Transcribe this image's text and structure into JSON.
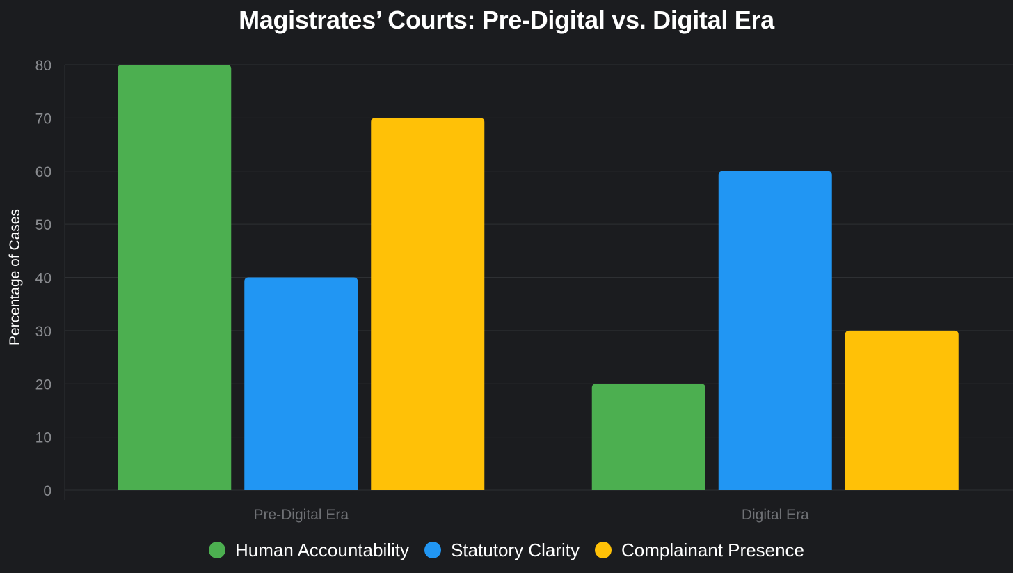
{
  "chart_data": {
    "type": "bar",
    "title": "Magistrates’ Courts: Pre-Digital vs. Digital Era",
    "xlabel": "",
    "ylabel": "Percentage of Cases",
    "categories": [
      "Pre-Digital Era",
      "Digital Era"
    ],
    "series": [
      {
        "name": "Human Accountability",
        "color": "#4caf50",
        "values": [
          80,
          20
        ]
      },
      {
        "name": "Statutory Clarity",
        "color": "#2196f3",
        "values": [
          40,
          60
        ]
      },
      {
        "name": "Complainant Presence",
        "color": "#ffc107",
        "values": [
          70,
          30
        ]
      }
    ],
    "ylim": [
      0,
      80
    ],
    "yticks": [
      0,
      10,
      20,
      30,
      40,
      50,
      60,
      70,
      80
    ],
    "grid": true,
    "legend_position": "bottom"
  },
  "colors": {
    "background": "#1b1c1f",
    "grid": "#2e3033",
    "tick_label": "#8a8c90",
    "category_label": "#6f7175"
  }
}
